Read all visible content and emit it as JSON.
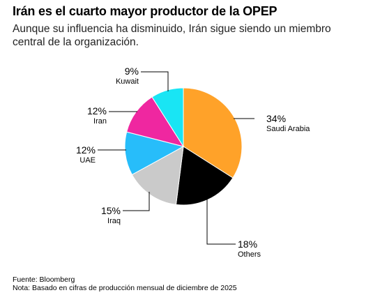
{
  "header": {
    "title": "Irán es el cuarto mayor productor de la OPEP",
    "subtitle": "Aunque su influencia ha disminuido, Irán sigue siendo un miembro central de la organización."
  },
  "footer": {
    "source": "Fuente: Bloomberg",
    "note": "Nota: Basado en cifras de producción mensual de diciembre de 2025"
  },
  "chart_data": {
    "type": "pie",
    "title": "Irán es el cuarto mayor productor de la OPEP",
    "unit": "%",
    "slices": [
      {
        "label": "Saudi Arabia",
        "value": 34,
        "value_label": "34%",
        "color": "#ffa229"
      },
      {
        "label": "Others",
        "value": 18,
        "value_label": "18%",
        "color": "#000000"
      },
      {
        "label": "Iraq",
        "value": 15,
        "value_label": "15%",
        "color": "#cacaca"
      },
      {
        "label": "UAE",
        "value": 12,
        "value_label": "12%",
        "color": "#27bdfa"
      },
      {
        "label": "Iran",
        "value": 12,
        "value_label": "12%",
        "color": "#ef27a0"
      },
      {
        "label": "Kuwait",
        "value": 9,
        "value_label": "9%",
        "color": "#19e5f4"
      }
    ]
  }
}
